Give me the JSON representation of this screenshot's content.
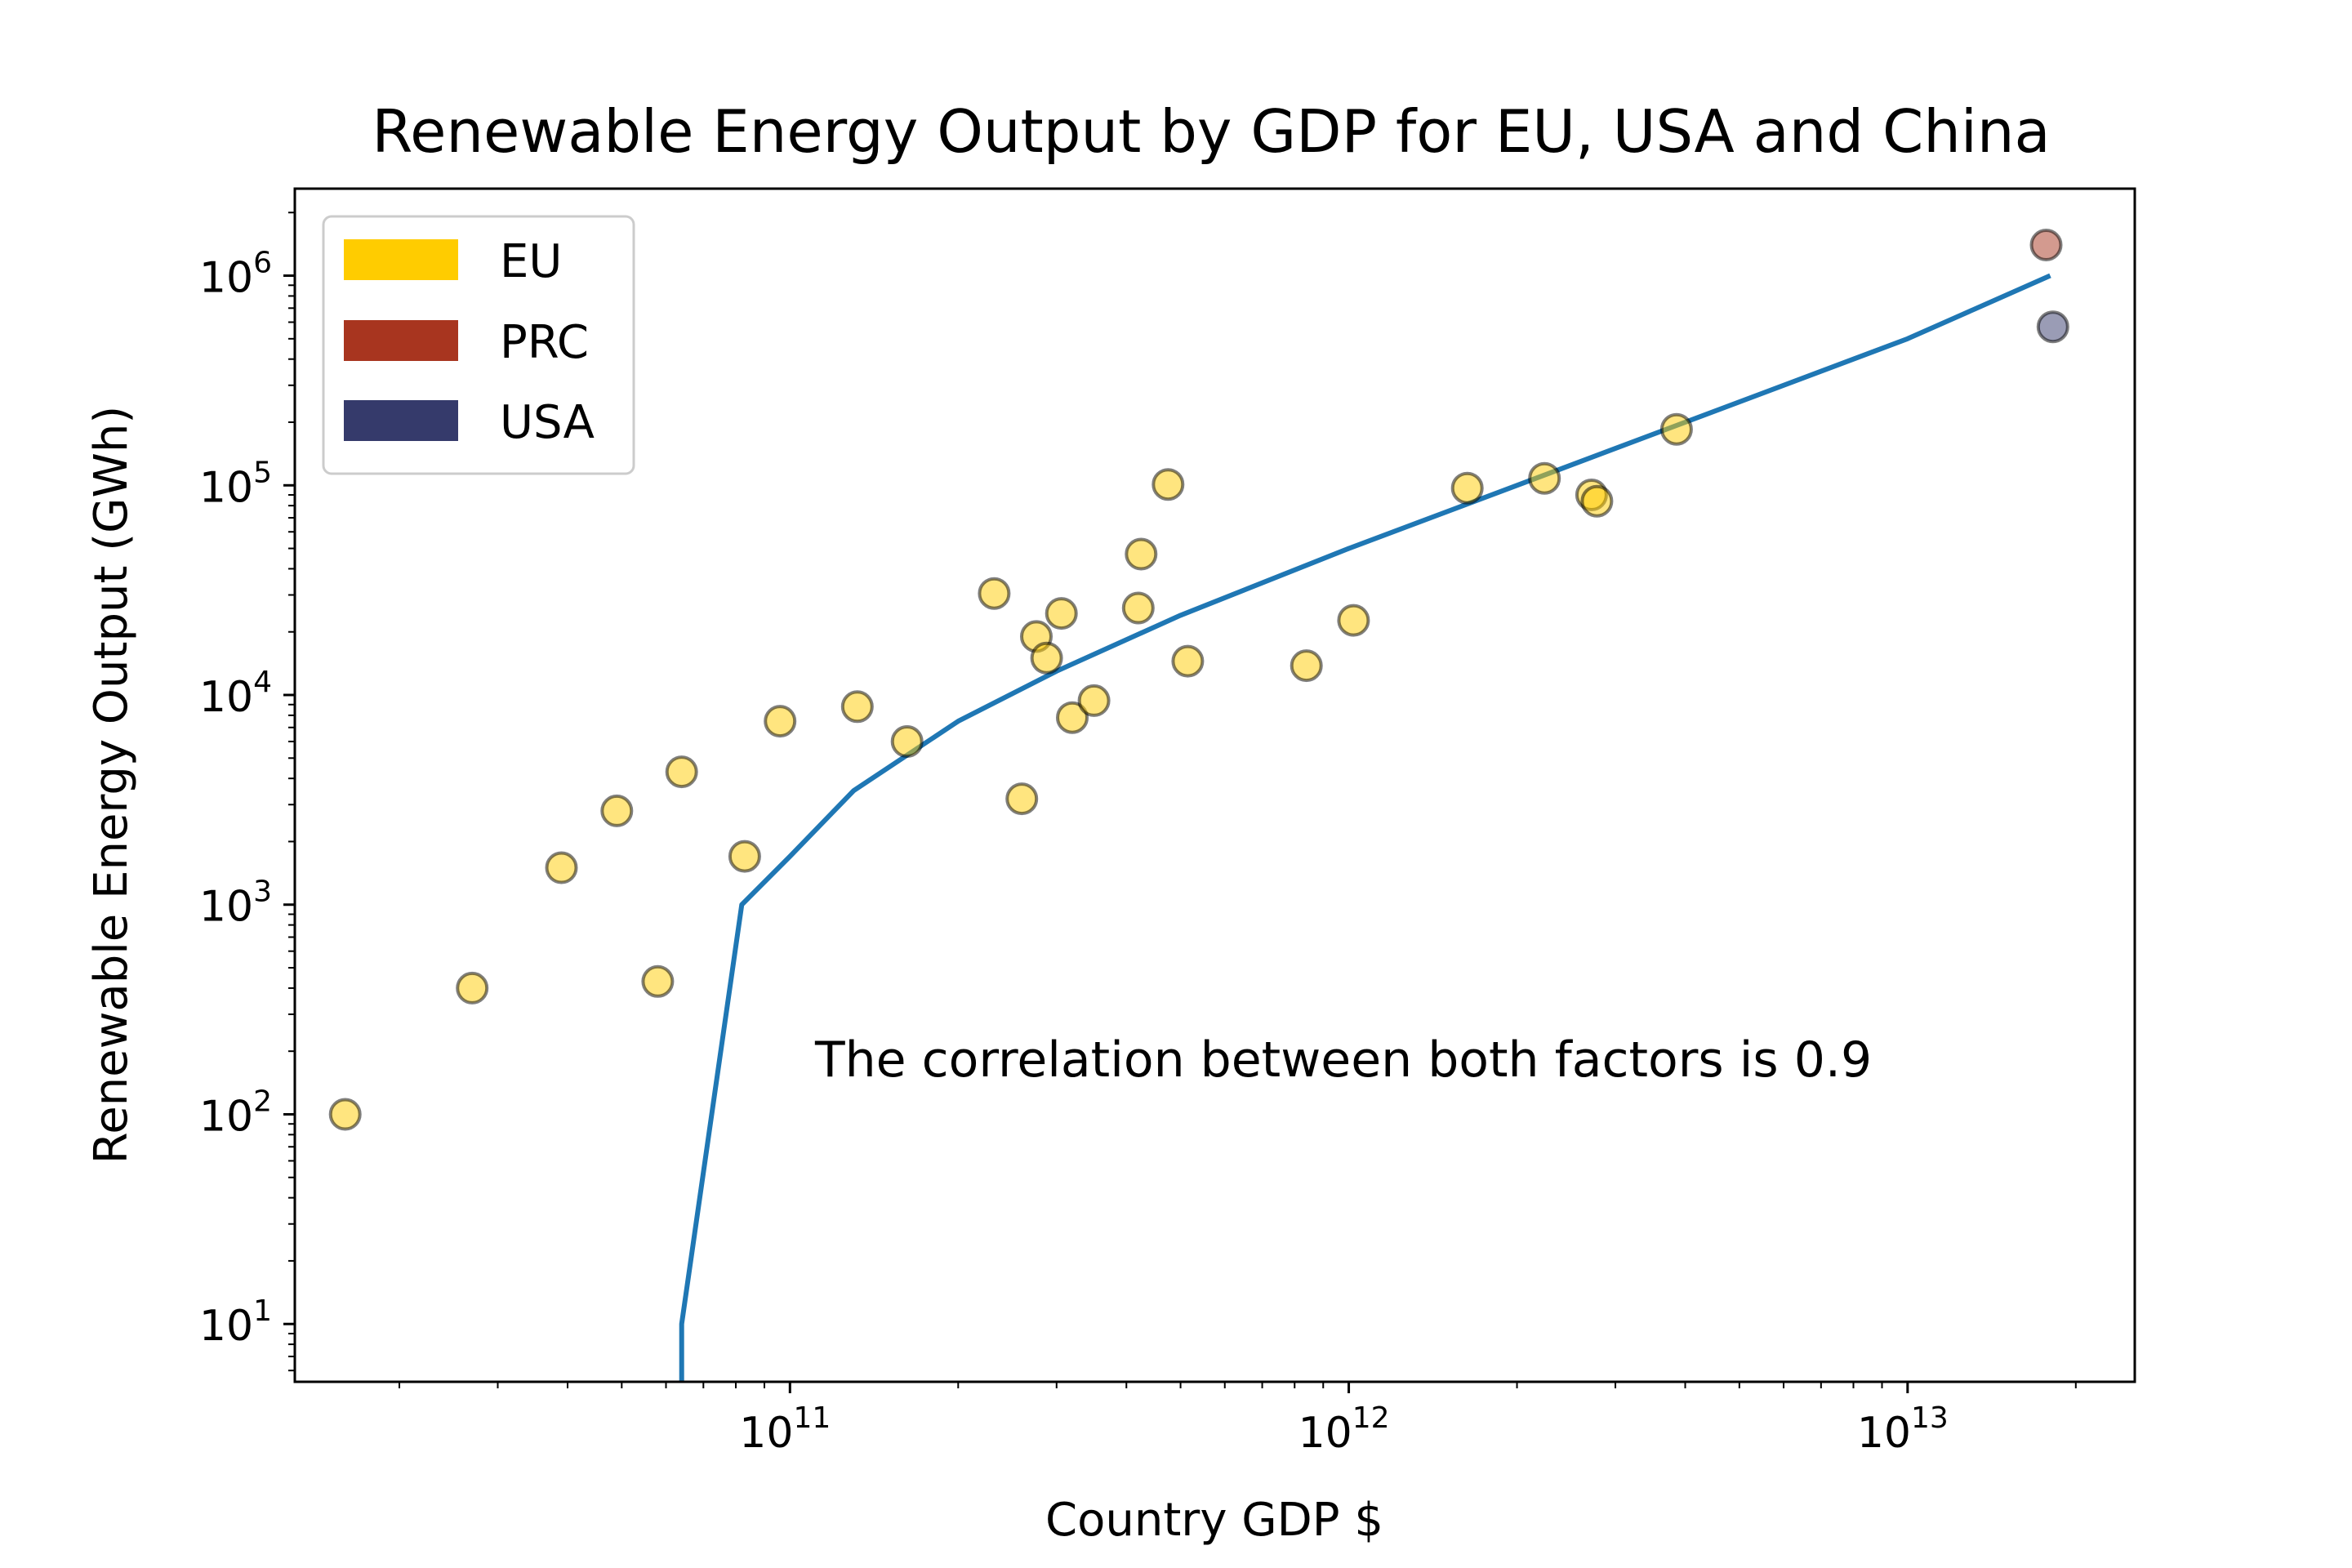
{
  "chart_data": {
    "type": "scatter",
    "title": "Renewable Energy Output by GDP for EU, USA and China",
    "xlabel": "Country GDP $",
    "ylabel": "Renewable Energy Output (GWh)",
    "xscale": "log",
    "yscale": "log",
    "xlim": [
      13000000000.0,
      25500000000000.0
    ],
    "ylim": [
      5.3,
      2600000.0
    ],
    "x_ticks": [
      {
        "value": 100000000000.0,
        "base": "10",
        "exp": "11"
      },
      {
        "value": 1000000000000.0,
        "base": "10",
        "exp": "12"
      },
      {
        "value": 10000000000000.0,
        "base": "10",
        "exp": "13"
      }
    ],
    "y_ticks": [
      {
        "value": 10.0,
        "base": "10",
        "exp": "1"
      },
      {
        "value": 100.0,
        "base": "10",
        "exp": "2"
      },
      {
        "value": 1000.0,
        "base": "10",
        "exp": "3"
      },
      {
        "value": 10000.0,
        "base": "10",
        "exp": "4"
      },
      {
        "value": 100000.0,
        "base": "10",
        "exp": "5"
      },
      {
        "value": 1000000.0,
        "base": "10",
        "exp": "6"
      }
    ],
    "grid": false,
    "legend": {
      "position": "top-left",
      "entries": [
        {
          "label": "EU",
          "color": "#ffcc00"
        },
        {
          "label": "PRC",
          "color": "#a8351f"
        },
        {
          "label": "USA",
          "color": "#353a6b"
        }
      ]
    },
    "annotation": "The correlation between both factors is 0.9",
    "series": [
      {
        "name": "EU",
        "color": "#ffcc00",
        "points": [
          {
            "x": 16000000000.0,
            "y": 100
          },
          {
            "x": 27000000000.0,
            "y": 400
          },
          {
            "x": 39000000000.0,
            "y": 1500
          },
          {
            "x": 49000000000.0,
            "y": 2800
          },
          {
            "x": 58000000000.0,
            "y": 430
          },
          {
            "x": 64000000000.0,
            "y": 4300
          },
          {
            "x": 83000000000.0,
            "y": 1700
          },
          {
            "x": 96000000000.0,
            "y": 7500
          },
          {
            "x": 132000000000.0,
            "y": 8800
          },
          {
            "x": 162000000000.0,
            "y": 6000
          },
          {
            "x": 232000000000.0,
            "y": 30500
          },
          {
            "x": 260000000000.0,
            "y": 3200
          },
          {
            "x": 276000000000.0,
            "y": 19000
          },
          {
            "x": 288000000000.0,
            "y": 15000
          },
          {
            "x": 306000000000.0,
            "y": 24500
          },
          {
            "x": 320000000000.0,
            "y": 7800
          },
          {
            "x": 350000000000.0,
            "y": 9400
          },
          {
            "x": 420000000000.0,
            "y": 26000
          },
          {
            "x": 425000000000.0,
            "y": 47000
          },
          {
            "x": 475000000000.0,
            "y": 101000
          },
          {
            "x": 515000000000.0,
            "y": 14500
          },
          {
            "x": 840000000000.0,
            "y": 13800
          },
          {
            "x": 1020000000000.0,
            "y": 22700
          },
          {
            "x": 1630000000000.0,
            "y": 97000
          },
          {
            "x": 2240000000000.0,
            "y": 108000
          },
          {
            "x": 2720000000000.0,
            "y": 90000
          },
          {
            "x": 2780000000000.0,
            "y": 84000
          },
          {
            "x": 3860000000000.0,
            "y": 185000
          }
        ]
      },
      {
        "name": "PRC",
        "color": "#a8351f",
        "points": [
          {
            "x": 17700000000000.0,
            "y": 1400000
          }
        ]
      },
      {
        "name": "USA",
        "color": "#353a6b",
        "points": [
          {
            "x": 18200000000000.0,
            "y": 570000
          }
        ]
      }
    ],
    "fit_line": {
      "color": "#1f77b4",
      "points": [
        {
          "x": 64000000000.0,
          "y": 5.3
        },
        {
          "x": 64000000000.0,
          "y": 10
        },
        {
          "x": 82000000000.0,
          "y": 1000
        },
        {
          "x": 100000000000.0,
          "y": 1700
        },
        {
          "x": 130000000000.0,
          "y": 3500
        },
        {
          "x": 200000000000.0,
          "y": 7500
        },
        {
          "x": 300000000000.0,
          "y": 13000
        },
        {
          "x": 500000000000.0,
          "y": 24000
        },
        {
          "x": 1000000000000.0,
          "y": 50000
        },
        {
          "x": 3000000000000.0,
          "y": 150000
        },
        {
          "x": 10000000000000.0,
          "y": 500000
        },
        {
          "x": 18000000000000.0,
          "y": 1000000
        }
      ]
    }
  }
}
